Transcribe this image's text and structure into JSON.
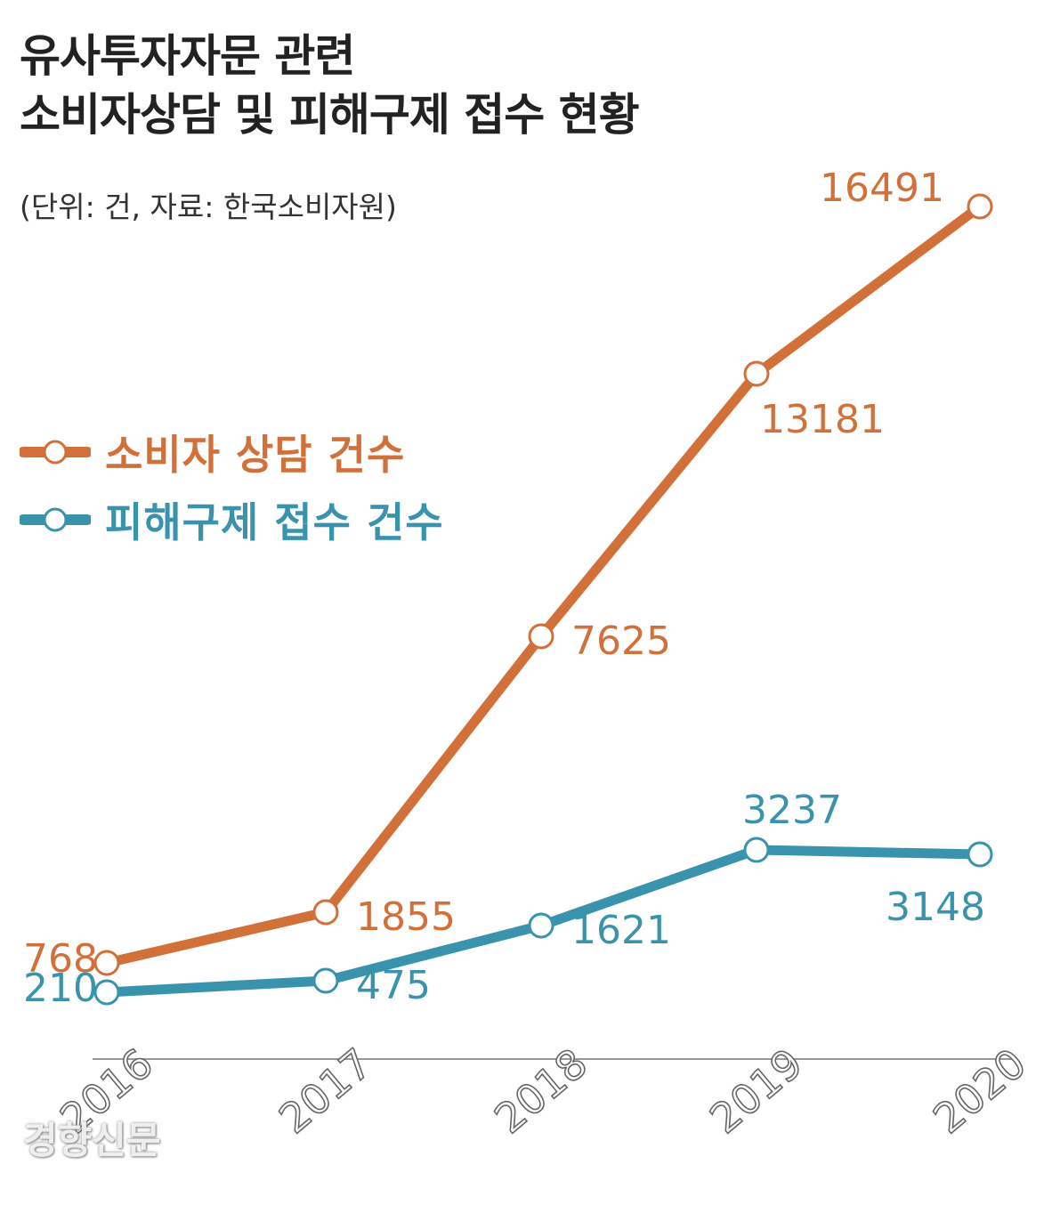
{
  "title_lines": [
    "유사투자자문 관련",
    "소비자상담 및 피해구제 접수 현황"
  ],
  "unit_note": "(단위: 건, 자료: 한국소비자원)",
  "watermark": "경향신문",
  "colors": {
    "counsel": "#d2703a",
    "relief": "#3a93ad",
    "axis": "#999999",
    "tick_text": "#666666"
  },
  "legend": [
    {
      "label": "소비자 상담 건수",
      "series": 0
    },
    {
      "label": "피해구제 접수 건수",
      "series": 1
    }
  ],
  "chart_data": {
    "type": "line",
    "title": "유사투자자문 관련 소비자상담 및 피해구제 접수 현황",
    "categories": [
      "2016",
      "2017",
      "2018",
      "2019",
      "2020"
    ],
    "series": [
      {
        "name": "소비자 상담 건수",
        "values": [
          768,
          1855,
          7625,
          13181,
          16491
        ],
        "color": "#d2703a",
        "label_placement": [
          "left",
          "right-below",
          "right-below",
          "below",
          "above"
        ]
      },
      {
        "name": "피해구제 접수 건수",
        "values": [
          210,
          475,
          1621,
          3237,
          3148
        ],
        "color": "#3a93ad",
        "label_placement": [
          "left",
          "right-below",
          "right-below",
          "above",
          "below"
        ]
      }
    ],
    "xlabel": "",
    "ylabel": "",
    "ylim": [
      0,
      18000
    ],
    "grid": false,
    "legend": "left"
  }
}
